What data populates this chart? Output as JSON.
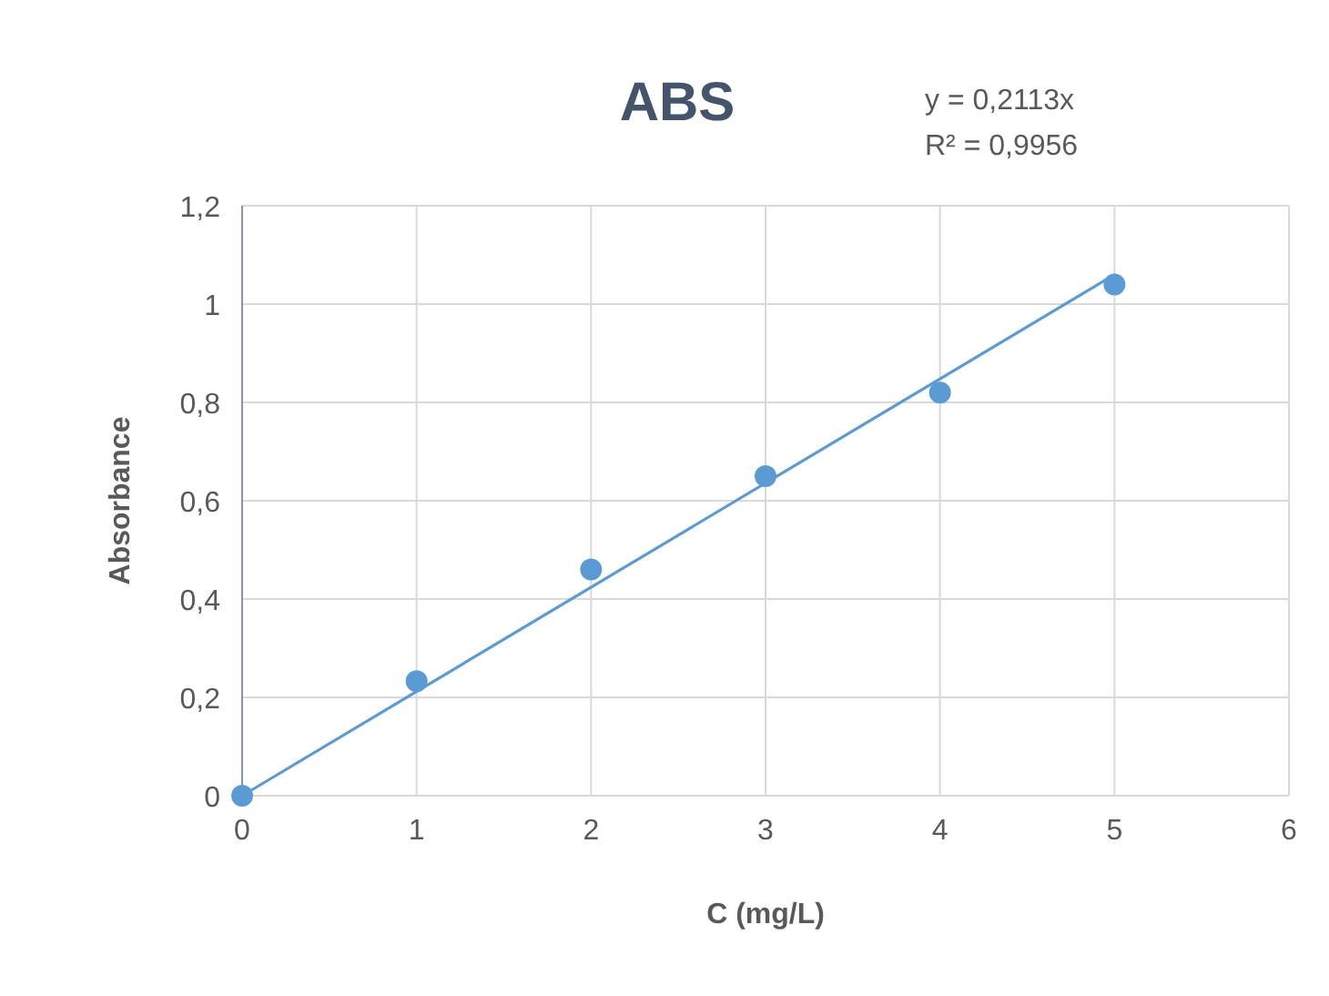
{
  "chart_data": {
    "type": "scatter",
    "title": "ABS",
    "xlabel": "C (mg/L)",
    "ylabel": "Absorbance",
    "annotations": [
      "y = 0,2113x",
      "R² = 0,9956"
    ],
    "x": [
      0,
      1,
      2,
      3,
      4,
      5
    ],
    "series": [
      {
        "color": "#5b9bd5",
        "values": [
          0,
          0.233,
          0.46,
          0.65,
          0.82,
          1.04
        ],
        "marker": "circle"
      },
      {
        "type": "line",
        "color": "#5b9bd5",
        "x": [
          0,
          5
        ],
        "values": [
          0,
          1.06
        ],
        "line_style": "solid"
      }
    ],
    "xlim": [
      0,
      6
    ],
    "xticks": [
      0,
      1,
      2,
      3,
      4,
      5,
      6
    ],
    "ylim": [
      0,
      1.2
    ],
    "yticks": [
      0,
      {
        "value": 0.2,
        "label": "0,2"
      },
      {
        "value": 0.4,
        "label": "0,4"
      },
      {
        "value": 0.6,
        "label": "0,6"
      },
      {
        "value": 0.8,
        "label": "0,8"
      },
      1,
      {
        "value": 1.2,
        "label": "1,2"
      }
    ],
    "grid": true
  }
}
